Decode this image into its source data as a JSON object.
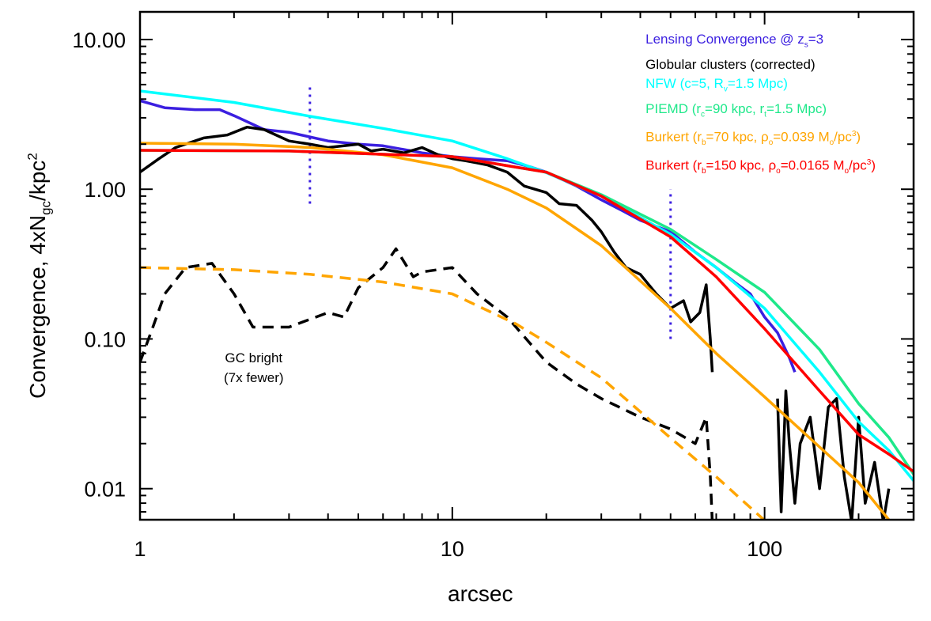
{
  "chart_data": {
    "type": "line",
    "xscale": "log",
    "yscale": "log",
    "xlim": [
      1,
      300
    ],
    "ylim": [
      0.0062,
      15.3
    ],
    "xlabel": "arcsec",
    "ylabel_parts": [
      {
        "t": "Convergence, 4xN"
      },
      {
        "sub": "gc"
      },
      {
        "t": "/kpc"
      },
      {
        "sup": "2"
      }
    ],
    "xticks": [
      {
        "v": 1,
        "label": "1"
      },
      {
        "v": 10,
        "label": "10"
      },
      {
        "v": 100,
        "label": "100"
      }
    ],
    "yticks": [
      {
        "v": 10,
        "label": "10.00"
      },
      {
        "v": 1,
        "label": "1.00"
      },
      {
        "v": 0.1,
        "label": "0.10"
      },
      {
        "v": 0.01,
        "label": "0.01"
      }
    ],
    "grid": false,
    "legend_placement": "top-right",
    "annotation": [
      "GC bright",
      "(7x fewer)"
    ],
    "vlines": [
      {
        "x": 3.5,
        "y": [
          0.8,
          5.0
        ],
        "color": "#3b1fe0",
        "style": "dotted"
      },
      {
        "x": 50,
        "y": [
          0.1,
          1.0
        ],
        "color": "#3b1fe0",
        "style": "dotted"
      }
    ],
    "series": [
      {
        "name_parts": [
          {
            "t": "Lensing Convergence @ z"
          },
          {
            "sub": "s"
          },
          {
            "t": "=3"
          }
        ],
        "color": "#3b1fe0",
        "style": "solid",
        "x": [
          1,
          1.2,
          1.5,
          1.8,
          2,
          2.5,
          3,
          4,
          5,
          6,
          8,
          10,
          12,
          15,
          18,
          20,
          25,
          30,
          35,
          40,
          50,
          60,
          70,
          80,
          90,
          100,
          110,
          120,
          125
        ],
        "y": [
          3.9,
          3.5,
          3.4,
          3.4,
          3.1,
          2.5,
          2.4,
          2.1,
          2.0,
          1.95,
          1.75,
          1.65,
          1.6,
          1.55,
          1.4,
          1.3,
          1.05,
          0.85,
          0.72,
          0.62,
          0.52,
          0.38,
          0.3,
          0.24,
          0.2,
          0.14,
          0.11,
          0.075,
          0.06
        ]
      },
      {
        "name_parts": [
          {
            "t": "Globular clusters (corrected)"
          }
        ],
        "color": "#000000",
        "style": "solid",
        "x": [
          1,
          1.15,
          1.3,
          1.6,
          1.9,
          2.2,
          2.5,
          3,
          3.5,
          4,
          4.5,
          5,
          5.5,
          6,
          7,
          8,
          9,
          10,
          11,
          12,
          13,
          15,
          17,
          20,
          22,
          25,
          28,
          30,
          33,
          36,
          40,
          45,
          50,
          55,
          58,
          62,
          65,
          67,
          68,
          null,
          110,
          113,
          117,
          120,
          125,
          130,
          140,
          150,
          160,
          170,
          180,
          190,
          200,
          210,
          225,
          240,
          250
        ],
        "y": [
          1.3,
          1.6,
          1.9,
          2.2,
          2.3,
          2.6,
          2.5,
          2.1,
          2.0,
          1.9,
          1.95,
          2.0,
          1.8,
          1.85,
          1.75,
          1.9,
          1.7,
          1.6,
          1.55,
          1.5,
          1.45,
          1.3,
          1.05,
          0.95,
          0.8,
          0.78,
          0.62,
          0.52,
          0.38,
          0.3,
          0.27,
          0.2,
          0.16,
          0.18,
          0.13,
          0.15,
          0.23,
          0.1,
          0.06,
          null,
          0.04,
          0.007,
          0.045,
          0.02,
          0.008,
          0.02,
          0.03,
          0.01,
          0.035,
          0.04,
          0.012,
          0.006,
          0.03,
          0.008,
          0.015,
          0.006,
          0.01
        ]
      },
      {
        "name_parts": [
          {
            "t": "NFW (c=5, R"
          },
          {
            "sub": "v"
          },
          {
            "t": "=1.5 Mpc)"
          }
        ],
        "color": "#00ffff",
        "style": "solid",
        "x": [
          1,
          2,
          3.5,
          6,
          10,
          15,
          20,
          30,
          50,
          70,
          100,
          150,
          200,
          250,
          300
        ],
        "y": [
          4.53,
          3.8,
          3.07,
          2.55,
          2.1,
          1.6,
          1.29,
          0.9,
          0.5,
          0.3,
          0.16,
          0.06,
          0.028,
          0.018,
          0.0113
        ]
      },
      {
        "name_parts": [
          {
            "t": "PIEMD (r"
          },
          {
            "sub": "c"
          },
          {
            "t": "=90 kpc, r"
          },
          {
            "sub": "t"
          },
          {
            "t": "=1.5 Mpc)"
          }
        ],
        "color": "#1ee88a",
        "style": "solid",
        "x": [
          1,
          3,
          10,
          20,
          30,
          50,
          70,
          100,
          150,
          200,
          250,
          300
        ],
        "y": [
          1.82,
          1.8,
          1.65,
          1.3,
          0.92,
          0.54,
          0.34,
          0.205,
          0.085,
          0.037,
          0.022,
          0.0125
        ]
      },
      {
        "name_parts": [
          {
            "t": "Burkert (r"
          },
          {
            "sub": "b"
          },
          {
            "t": "=70 kpc, ρ"
          },
          {
            "sub": "o"
          },
          {
            "t": "=0.039 M"
          },
          {
            "sub": "o"
          },
          {
            "t": "/pc"
          },
          {
            "sup": "3"
          },
          {
            "t": ")"
          }
        ],
        "color": "#ffa500",
        "style": "solid",
        "x": [
          1,
          2,
          3.5,
          6,
          10,
          15,
          20,
          30,
          50,
          70,
          100,
          150,
          200,
          250
        ],
        "y": [
          2.03,
          2.0,
          1.9,
          1.7,
          1.39,
          1.0,
          0.75,
          0.42,
          0.16,
          0.08,
          0.041,
          0.019,
          0.011,
          0.0062
        ]
      },
      {
        "name_parts": [
          {
            "t": "Burkert (r"
          },
          {
            "sub": "b"
          },
          {
            "t": "=150 kpc, ρ"
          },
          {
            "sub": "o"
          },
          {
            "t": "=0.0165 M"
          },
          {
            "sub": "o"
          },
          {
            "t": "/pc"
          },
          {
            "sup": "3"
          },
          {
            "t": ")"
          }
        ],
        "color": "#ff0000",
        "style": "solid",
        "x": [
          1,
          3,
          10,
          20,
          30,
          50,
          70,
          100,
          150,
          200,
          250,
          300
        ],
        "y": [
          1.82,
          1.8,
          1.65,
          1.3,
          0.9,
          0.48,
          0.26,
          0.117,
          0.045,
          0.023,
          0.017,
          0.013
        ]
      },
      {
        "color": "#000000",
        "style": "dashed",
        "x": [
          1,
          1.1,
          1.2,
          1.4,
          1.7,
          2,
          2.3,
          3,
          4,
          4.5,
          5,
          6,
          6.6,
          7.5,
          8,
          10,
          12,
          15,
          20,
          25,
          30,
          40,
          50,
          60,
          65,
          67,
          68
        ],
        "y": [
          0.07,
          0.12,
          0.2,
          0.3,
          0.32,
          0.2,
          0.12,
          0.12,
          0.15,
          0.14,
          0.22,
          0.3,
          0.4,
          0.26,
          0.28,
          0.3,
          0.2,
          0.14,
          0.07,
          0.05,
          0.04,
          0.03,
          0.025,
          0.02,
          0.03,
          0.012,
          0.006
        ]
      },
      {
        "color": "#ffa500",
        "style": "dashed",
        "x": [
          1,
          2,
          3.5,
          6,
          10,
          16,
          20,
          30,
          51,
          70,
          103
        ],
        "y": [
          0.3,
          0.29,
          0.27,
          0.24,
          0.2,
          0.126,
          0.095,
          0.055,
          0.021,
          0.012,
          0.0058
        ]
      }
    ]
  }
}
